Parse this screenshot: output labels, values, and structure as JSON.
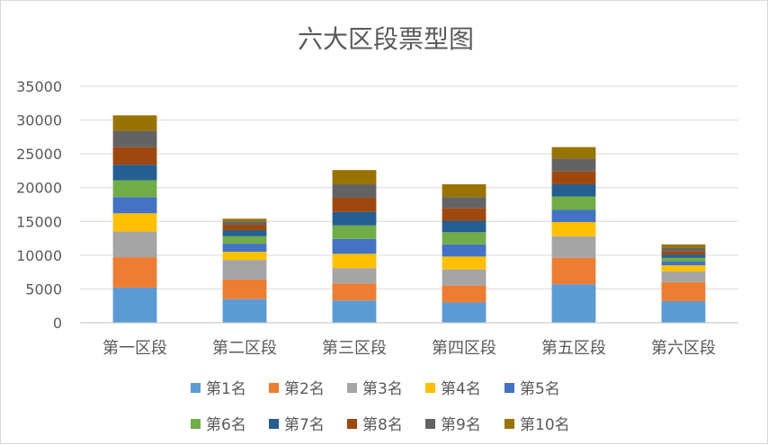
{
  "chart_data": {
    "type": "bar",
    "stacked": true,
    "title": "六大区段票型图",
    "xlabel": "",
    "ylabel": "",
    "ylim": [
      0,
      35000
    ],
    "yticks": [
      0,
      5000,
      10000,
      15000,
      20000,
      25000,
      30000,
      35000
    ],
    "grid": true,
    "legend_position": "bottom",
    "categories": [
      "第一区段",
      "第二区段",
      "第三区段",
      "第四区段",
      "第五区段",
      "第六区段"
    ],
    "series": [
      {
        "name": "第1名",
        "color": "#5B9BD5",
        "values": [
          5200,
          3500,
          3300,
          3000,
          5700,
          3200
        ]
      },
      {
        "name": "第2名",
        "color": "#ED7D31",
        "values": [
          4500,
          2900,
          2500,
          2500,
          3900,
          2800
        ]
      },
      {
        "name": "第3名",
        "color": "#A5A5A5",
        "values": [
          3800,
          2900,
          2300,
          2400,
          3200,
          1600
        ]
      },
      {
        "name": "第4名",
        "color": "#FFC000",
        "values": [
          2700,
          1200,
          2100,
          1900,
          2100,
          900
        ]
      },
      {
        "name": "第5名",
        "color": "#4472C4",
        "values": [
          2400,
          1200,
          2200,
          1800,
          1800,
          600
        ]
      },
      {
        "name": "第6名",
        "color": "#70AD47",
        "values": [
          2500,
          1100,
          2000,
          1800,
          2000,
          500
        ]
      },
      {
        "name": "第7名",
        "color": "#255E91",
        "values": [
          2300,
          900,
          2000,
          1700,
          1800,
          500
        ]
      },
      {
        "name": "第8名",
        "color": "#9E480E",
        "values": [
          2600,
          800,
          2100,
          1900,
          1900,
          500
        ]
      },
      {
        "name": "第9名",
        "color": "#636363",
        "values": [
          2400,
          500,
          2000,
          1600,
          1900,
          500
        ]
      },
      {
        "name": "第10名",
        "color": "#997300",
        "values": [
          2300,
          400,
          2100,
          1900,
          1700,
          500
        ]
      }
    ]
  }
}
